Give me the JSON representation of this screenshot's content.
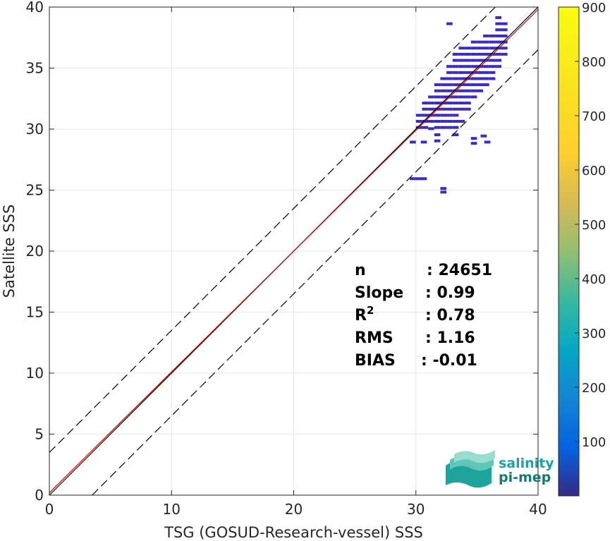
{
  "chart_data": {
    "type": "heatmap",
    "title": "",
    "xlabel": "TSG (GOSUD-Research-vessel) SSS",
    "ylabel": "Satellite SSS",
    "xlim": [
      0,
      40
    ],
    "ylim": [
      0,
      40
    ],
    "xticks": [
      "0",
      "10",
      "20",
      "30",
      "40"
    ],
    "yticks": [
      "0",
      "5",
      "10",
      "15",
      "20",
      "25",
      "30",
      "35",
      "40"
    ],
    "grid": true,
    "colorbar": {
      "range": [
        0,
        900
      ],
      "ticks": [
        "100",
        "200",
        "300",
        "400",
        "500",
        "600",
        "700",
        "800",
        "900"
      ],
      "colormap": "parula"
    },
    "reference_lines": {
      "identity": {
        "slope": 1,
        "intercept": 0,
        "color": "#000000"
      },
      "fit": {
        "slope": 0.99,
        "intercept": 0.2,
        "color": "#d40000"
      },
      "upper_bound": {
        "slope": 1,
        "intercept": 3.5,
        "style": "dashed"
      },
      "lower_bound": {
        "slope": 1,
        "intercept": -3.5,
        "style": "dashed"
      }
    },
    "density_cells": [
      [
        29.5,
        25.8
      ],
      [
        30.0,
        25.8
      ],
      [
        30.4,
        25.8
      ],
      [
        32.0,
        25.0
      ],
      [
        32.0,
        24.7
      ],
      [
        29.5,
        28.8
      ],
      [
        30.4,
        28.8
      ],
      [
        31.5,
        28.9
      ],
      [
        34.5,
        28.7
      ],
      [
        35.6,
        28.8
      ],
      [
        31.5,
        29.4
      ],
      [
        33.0,
        29.4
      ],
      [
        34.5,
        29.1
      ],
      [
        35.3,
        29.3
      ],
      [
        30.0,
        30.0
      ],
      [
        30.5,
        30.0
      ],
      [
        31.0,
        29.9
      ],
      [
        31.5,
        30.0
      ],
      [
        32.0,
        30.0
      ],
      [
        32.5,
        30.0
      ],
      [
        33.0,
        30.0
      ],
      [
        30.0,
        30.5
      ],
      [
        30.5,
        30.5
      ],
      [
        31.0,
        30.5
      ],
      [
        31.5,
        30.5
      ],
      [
        32.0,
        30.5
      ],
      [
        32.5,
        30.5
      ],
      [
        33.0,
        30.5
      ],
      [
        33.5,
        30.5
      ],
      [
        30.0,
        31.0
      ],
      [
        30.5,
        31.0
      ],
      [
        31.0,
        31.0
      ],
      [
        31.5,
        31.0
      ],
      [
        32.0,
        31.0
      ],
      [
        32.5,
        31.0
      ],
      [
        33.0,
        31.0
      ],
      [
        30.5,
        31.5
      ],
      [
        31.0,
        31.5
      ],
      [
        31.5,
        31.5
      ],
      [
        32.0,
        31.5
      ],
      [
        32.5,
        31.5
      ],
      [
        33.0,
        31.5
      ],
      [
        33.5,
        31.5
      ],
      [
        34.0,
        31.5
      ],
      [
        30.5,
        32.0
      ],
      [
        31.0,
        32.0
      ],
      [
        31.5,
        32.0
      ],
      [
        32.0,
        32.0
      ],
      [
        32.5,
        32.0
      ],
      [
        33.0,
        32.0
      ],
      [
        33.5,
        32.0
      ],
      [
        34.0,
        32.0
      ],
      [
        31.0,
        32.5
      ],
      [
        31.5,
        32.5
      ],
      [
        32.0,
        32.5
      ],
      [
        32.5,
        32.5
      ],
      [
        33.0,
        32.5
      ],
      [
        33.5,
        32.5
      ],
      [
        34.0,
        32.5
      ],
      [
        34.5,
        32.5
      ],
      [
        31.5,
        33.0
      ],
      [
        32.0,
        33.0
      ],
      [
        32.5,
        33.0
      ],
      [
        33.0,
        33.0
      ],
      [
        33.5,
        33.0
      ],
      [
        34.0,
        33.0
      ],
      [
        34.5,
        33.0
      ],
      [
        35.0,
        33.0
      ],
      [
        31.5,
        33.5
      ],
      [
        32.0,
        33.5
      ],
      [
        32.5,
        33.5
      ],
      [
        33.0,
        33.5
      ],
      [
        33.5,
        33.5
      ],
      [
        34.0,
        33.5
      ],
      [
        34.5,
        33.5
      ],
      [
        35.0,
        33.5
      ],
      [
        35.5,
        33.5
      ],
      [
        32.0,
        34.0
      ],
      [
        32.5,
        34.0
      ],
      [
        33.0,
        34.0
      ],
      [
        33.5,
        34.0
      ],
      [
        34.0,
        34.0
      ],
      [
        34.5,
        34.0
      ],
      [
        35.0,
        34.0
      ],
      [
        35.5,
        34.0
      ],
      [
        36.0,
        34.0
      ],
      [
        32.5,
        34.5
      ],
      [
        33.0,
        34.5
      ],
      [
        33.5,
        34.5
      ],
      [
        34.0,
        34.5
      ],
      [
        34.5,
        34.5
      ],
      [
        35.0,
        34.5
      ],
      [
        35.5,
        34.5
      ],
      [
        36.0,
        34.5
      ],
      [
        32.5,
        35.0
      ],
      [
        33.0,
        35.0
      ],
      [
        33.5,
        35.0
      ],
      [
        34.0,
        35.0
      ],
      [
        34.5,
        35.0
      ],
      [
        35.0,
        35.0
      ],
      [
        35.5,
        35.0
      ],
      [
        36.0,
        35.0
      ],
      [
        36.5,
        35.0
      ],
      [
        33.0,
        35.5
      ],
      [
        33.5,
        35.5
      ],
      [
        34.0,
        35.5
      ],
      [
        34.5,
        35.5
      ],
      [
        35.0,
        35.5
      ],
      [
        35.5,
        35.5
      ],
      [
        36.0,
        35.5
      ],
      [
        36.5,
        35.5
      ],
      [
        33.0,
        36.0
      ],
      [
        33.5,
        36.0
      ],
      [
        34.0,
        36.0
      ],
      [
        34.5,
        36.0
      ],
      [
        35.0,
        36.0
      ],
      [
        35.5,
        36.0
      ],
      [
        36.0,
        36.0
      ],
      [
        36.5,
        36.0
      ],
      [
        37.0,
        36.0
      ],
      [
        33.5,
        36.5
      ],
      [
        34.0,
        36.5
      ],
      [
        34.5,
        36.5
      ],
      [
        35.0,
        36.5
      ],
      [
        35.5,
        36.5
      ],
      [
        36.0,
        36.5
      ],
      [
        36.5,
        36.5
      ],
      [
        37.0,
        36.5
      ],
      [
        34.5,
        37.0
      ],
      [
        35.0,
        37.0
      ],
      [
        35.5,
        37.0
      ],
      [
        36.0,
        37.0
      ],
      [
        36.5,
        37.0
      ],
      [
        37.0,
        37.0
      ],
      [
        35.5,
        37.5
      ],
      [
        36.0,
        37.5
      ],
      [
        36.5,
        37.5
      ],
      [
        37.0,
        37.5
      ],
      [
        36.5,
        38.0
      ],
      [
        37.0,
        38.0
      ],
      [
        36.5,
        38.5
      ],
      [
        37.0,
        38.5
      ],
      [
        36.5,
        39.0
      ],
      [
        32.5,
        38.5
      ]
    ]
  },
  "stats": {
    "rows": [
      {
        "label": "n",
        "value": ": 24651",
        "value_x": 605
      },
      {
        "label": "Slope",
        "value": ": 0.99",
        "value_x": 603
      },
      {
        "label": "R",
        "sup": "2",
        "value": ": 0.78",
        "value_x": 603
      },
      {
        "label": "RMS",
        "value": ": 1.16",
        "value_x": 603
      },
      {
        "label": "BIAS",
        "value": ": -0.01",
        "value_x": 597
      }
    ]
  },
  "logo": {
    "line1": "salinity",
    "line2": "pi-mep",
    "color1": "#1fa39a",
    "color2": "#157a73"
  },
  "colors": {
    "density": "#3b2ac4",
    "fit_line": "#d40000",
    "grid": "#e6e6e6"
  }
}
